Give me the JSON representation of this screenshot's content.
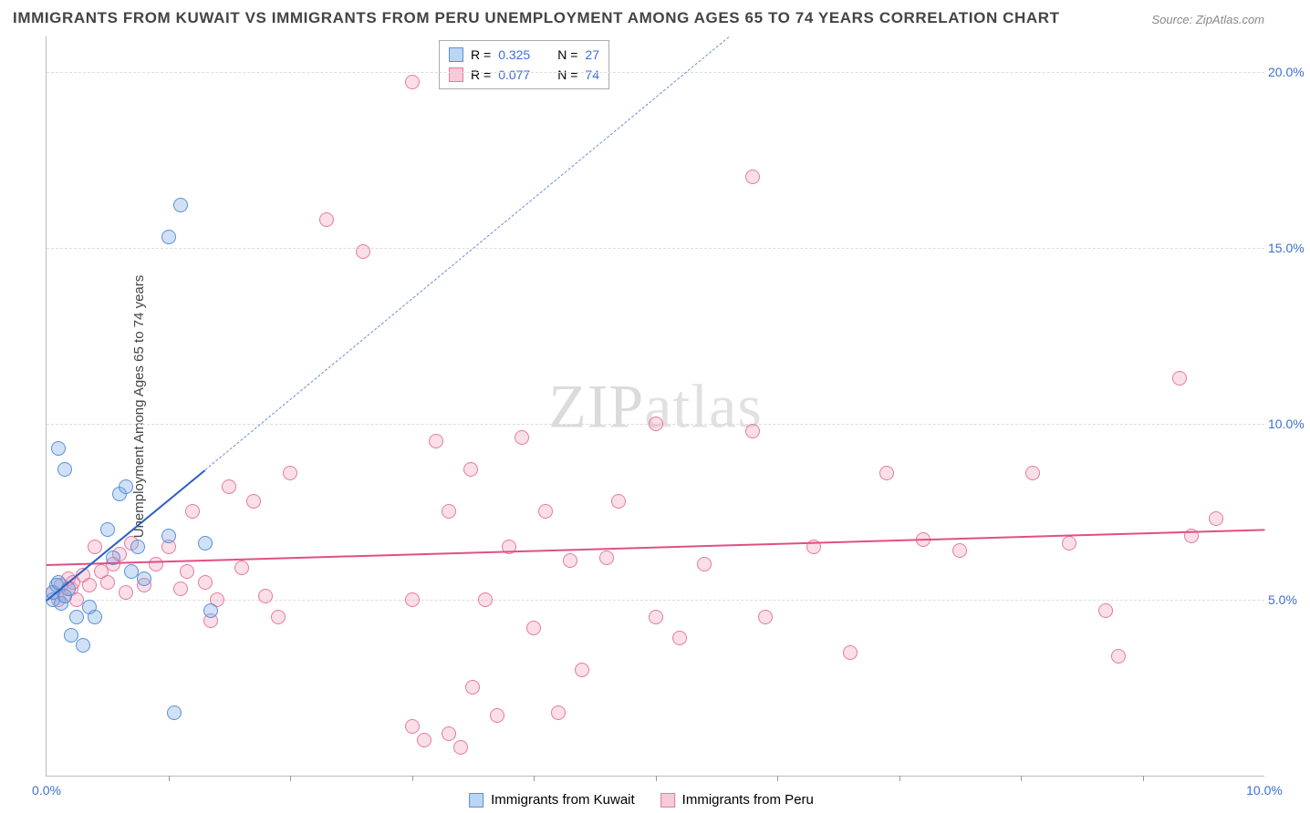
{
  "title": "IMMIGRANTS FROM KUWAIT VS IMMIGRANTS FROM PERU UNEMPLOYMENT AMONG AGES 65 TO 74 YEARS CORRELATION CHART",
  "source": "Source: ZipAtlas.com",
  "y_axis_label": "Unemployment Among Ages 65 to 74 years",
  "watermark": "ZIPatlas",
  "chart": {
    "type": "scatter",
    "xlim": [
      0,
      10
    ],
    "ylim": [
      0,
      21
    ],
    "x_ticks": [
      0.0,
      10.0
    ],
    "x_tick_labels": [
      "0.0%",
      "10.0%"
    ],
    "x_minor_ticks": [
      1,
      2,
      3,
      4,
      5,
      6,
      7,
      8,
      9
    ],
    "y_grid": [
      5.0,
      10.0,
      15.0,
      20.0
    ],
    "y_tick_labels": [
      "5.0%",
      "10.0%",
      "15.0%",
      "20.0%"
    ],
    "x_tick_color": "#3b6fd6",
    "y_tick_color": "#3b6fd6",
    "grid_color": "#dddddd",
    "background_color": "#ffffff",
    "marker_radius": 8,
    "marker_stroke_width": 1.2,
    "label_fontsize": 15
  },
  "series": {
    "kuwait": {
      "label": "Immigrants from Kuwait",
      "color_fill": "rgba(120,170,230,0.35)",
      "color_stroke": "#5a8fd6",
      "swatch_fill": "#bcd5f2",
      "swatch_border": "#5a8fd6",
      "R": "0.325",
      "N": "27",
      "trend": {
        "x1": 0.0,
        "y1": 5.0,
        "x2": 1.3,
        "y2": 8.7,
        "color": "#2a5fc4",
        "width": 2,
        "dash": "none"
      },
      "trend_ext": {
        "x1": 1.3,
        "y1": 8.7,
        "x2": 5.6,
        "y2": 21.0,
        "color": "#6a8fd0",
        "width": 1.2,
        "dash": "5,4"
      },
      "points": [
        [
          0.05,
          5.0
        ],
        [
          0.05,
          5.2
        ],
        [
          0.08,
          5.4
        ],
        [
          0.1,
          5.5
        ],
        [
          0.12,
          4.9
        ],
        [
          0.15,
          5.1
        ],
        [
          0.18,
          5.3
        ],
        [
          0.1,
          9.3
        ],
        [
          0.15,
          8.7
        ],
        [
          0.2,
          4.0
        ],
        [
          0.25,
          4.5
        ],
        [
          0.3,
          3.7
        ],
        [
          0.35,
          4.8
        ],
        [
          0.4,
          4.5
        ],
        [
          0.5,
          7.0
        ],
        [
          0.55,
          6.2
        ],
        [
          0.6,
          8.0
        ],
        [
          0.65,
          8.2
        ],
        [
          0.7,
          5.8
        ],
        [
          0.75,
          6.5
        ],
        [
          0.8,
          5.6
        ],
        [
          1.0,
          6.8
        ],
        [
          1.05,
          1.8
        ],
        [
          1.1,
          16.2
        ],
        [
          1.0,
          15.3
        ],
        [
          1.35,
          4.7
        ],
        [
          1.3,
          6.6
        ]
      ]
    },
    "peru": {
      "label": "Immigrants from Peru",
      "color_fill": "rgba(240,150,180,0.30)",
      "color_stroke": "#e67aa0",
      "swatch_fill": "#f7c9d9",
      "swatch_border": "#e67aa0",
      "R": "0.077",
      "N": "74",
      "trend": {
        "x1": 0.0,
        "y1": 6.0,
        "x2": 10.0,
        "y2": 7.0,
        "color": "#e04f85",
        "width": 2.2,
        "dash": "none"
      },
      "points": [
        [
          0.05,
          5.2
        ],
        [
          0.1,
          5.0
        ],
        [
          0.12,
          5.4
        ],
        [
          0.15,
          5.1
        ],
        [
          0.18,
          5.6
        ],
        [
          0.2,
          5.3
        ],
        [
          0.22,
          5.5
        ],
        [
          0.25,
          5.0
        ],
        [
          0.3,
          5.7
        ],
        [
          0.35,
          5.4
        ],
        [
          0.4,
          6.5
        ],
        [
          0.45,
          5.8
        ],
        [
          0.5,
          5.5
        ],
        [
          0.55,
          6.0
        ],
        [
          0.6,
          6.3
        ],
        [
          0.65,
          5.2
        ],
        [
          0.7,
          6.6
        ],
        [
          0.8,
          5.4
        ],
        [
          0.9,
          6.0
        ],
        [
          1.0,
          6.5
        ],
        [
          1.1,
          5.3
        ],
        [
          1.15,
          5.8
        ],
        [
          1.2,
          7.5
        ],
        [
          1.3,
          5.5
        ],
        [
          1.35,
          4.4
        ],
        [
          1.4,
          5.0
        ],
        [
          1.5,
          8.2
        ],
        [
          1.6,
          5.9
        ],
        [
          1.7,
          7.8
        ],
        [
          1.8,
          5.1
        ],
        [
          1.9,
          4.5
        ],
        [
          2.0,
          8.6
        ],
        [
          2.3,
          15.8
        ],
        [
          2.6,
          14.9
        ],
        [
          3.0,
          19.7
        ],
        [
          3.0,
          5.0
        ],
        [
          3.0,
          1.4
        ],
        [
          3.1,
          1.0
        ],
        [
          3.2,
          9.5
        ],
        [
          3.3,
          7.5
        ],
        [
          3.3,
          1.2
        ],
        [
          3.4,
          0.8
        ],
        [
          3.48,
          8.7
        ],
        [
          3.5,
          2.5
        ],
        [
          3.6,
          5.0
        ],
        [
          3.7,
          1.7
        ],
        [
          3.8,
          6.5
        ],
        [
          3.9,
          9.6
        ],
        [
          4.0,
          4.2
        ],
        [
          4.1,
          7.5
        ],
        [
          4.2,
          1.8
        ],
        [
          4.3,
          6.1
        ],
        [
          4.4,
          3.0
        ],
        [
          4.6,
          6.2
        ],
        [
          4.7,
          7.8
        ],
        [
          5.0,
          4.5
        ],
        [
          5.2,
          3.9
        ],
        [
          5.4,
          6.0
        ],
        [
          5.8,
          17.0
        ],
        [
          5.8,
          9.8
        ],
        [
          5.9,
          4.5
        ],
        [
          6.3,
          6.5
        ],
        [
          6.6,
          3.5
        ],
        [
          6.9,
          8.6
        ],
        [
          7.2,
          6.7
        ],
        [
          7.5,
          6.4
        ],
        [
          8.1,
          8.6
        ],
        [
          8.4,
          6.6
        ],
        [
          8.7,
          4.7
        ],
        [
          8.8,
          3.4
        ],
        [
          9.3,
          11.3
        ],
        [
          9.4,
          6.8
        ],
        [
          9.6,
          7.3
        ],
        [
          5.0,
          10.0
        ]
      ]
    }
  },
  "legend_top": {
    "rows": [
      {
        "series": "kuwait",
        "r_label": "R =",
        "n_label": "N ="
      },
      {
        "series": "peru",
        "r_label": "R =",
        "n_label": "N ="
      }
    ]
  }
}
